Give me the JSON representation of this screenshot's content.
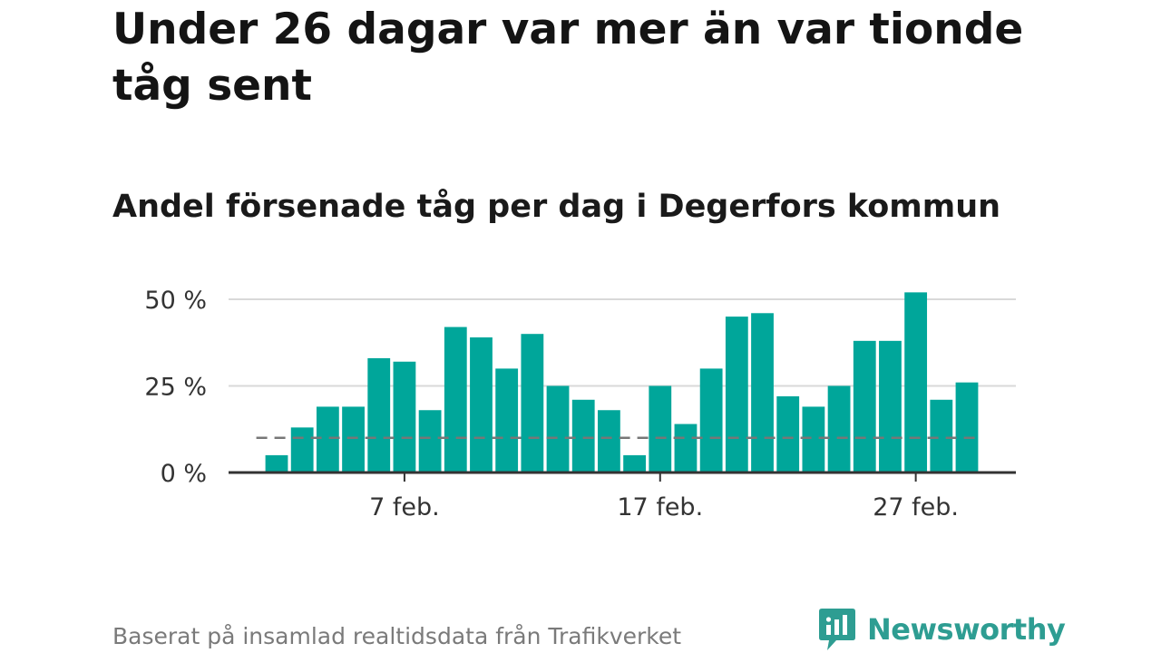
{
  "title": "Under 26 dagar var mer än var tionde tåg sent",
  "subtitle": "Andel försenade tåg per dag i Degerfors kommun",
  "source": "Baserat på insamlad realtidsdata från Trafikverket",
  "logo": {
    "text": "Newsworthy",
    "icon": "newsworthy-logo-icon",
    "color": "#2e9d92"
  },
  "chart_data": {
    "type": "bar",
    "x": [
      "2 feb.",
      "3 feb.",
      "4 feb.",
      "5 feb.",
      "6 feb.",
      "7 feb.",
      "8 feb.",
      "9 feb.",
      "10 feb.",
      "11 feb.",
      "12 feb.",
      "13 feb.",
      "14 feb.",
      "15 feb.",
      "16 feb.",
      "17 feb.",
      "18 feb.",
      "19 feb.",
      "20 feb.",
      "21 feb.",
      "22 feb.",
      "23 feb.",
      "24 feb.",
      "25 feb.",
      "26 feb.",
      "27 feb.",
      "28 feb.",
      "1 mars"
    ],
    "values": [
      5,
      13,
      19,
      19,
      33,
      32,
      18,
      42,
      39,
      30,
      40,
      25,
      21,
      18,
      5,
      25,
      14,
      30,
      45,
      46,
      22,
      19,
      25,
      38,
      38,
      52,
      21,
      26
    ],
    "y_ticks": [
      0,
      25,
      50
    ],
    "y_tick_labels": [
      "0 %",
      "25 %",
      "50 %"
    ],
    "ylim": [
      0,
      53
    ],
    "x_ticks": [
      "7 feb.",
      "17 feb.",
      "27 feb."
    ],
    "reference_line": {
      "value": 10,
      "style": "dashed",
      "color": "#777777"
    },
    "bar_color": "#00a69a",
    "grid": true,
    "legend": false
  }
}
